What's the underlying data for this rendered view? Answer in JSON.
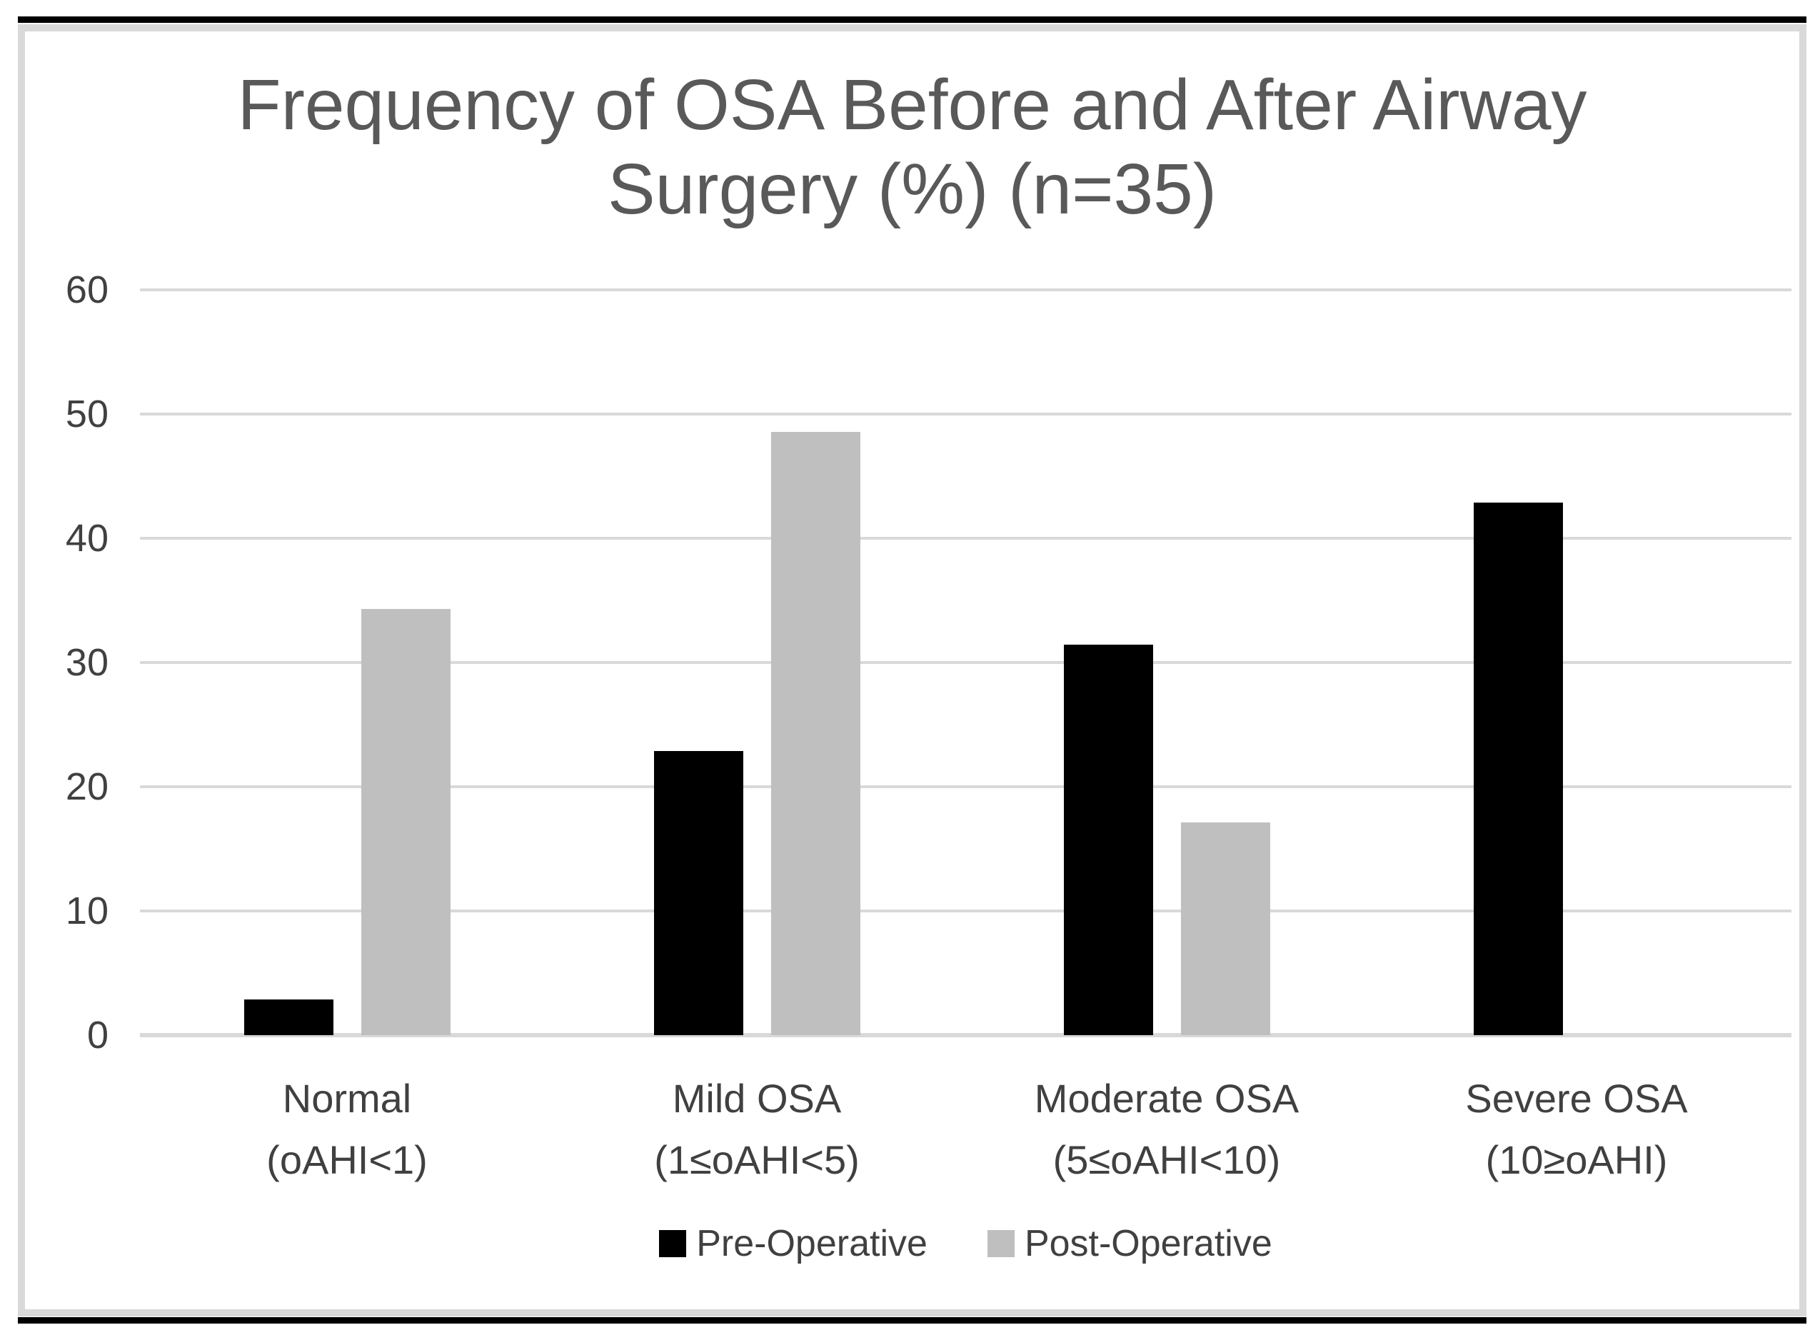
{
  "figure": {
    "title_line1": "Frequency of OSA Before and After Airway",
    "title_line2": "Surgery (%) (n=35)"
  },
  "chart_data": {
    "type": "bar",
    "title": "Frequency of OSA Before and After Airway Surgery (%) (n=35)",
    "sample_size_note": "n=35",
    "categories": [
      {
        "label": "Normal",
        "sublabel": "(oAHI<1)"
      },
      {
        "label": "Mild OSA",
        "sublabel": "(1≤oAHI<5)"
      },
      {
        "label": "Moderate OSA",
        "sublabel": "(5≤oAHI<10)"
      },
      {
        "label": "Severe OSA",
        "sublabel": "(10≥oAHI)"
      }
    ],
    "series": [
      {
        "name": "Pre-Operative",
        "color": "#000000",
        "values": [
          2.86,
          22.86,
          31.43,
          42.86
        ]
      },
      {
        "name": "Post-Operative",
        "color": "#bfbfbf",
        "values": [
          34.29,
          48.57,
          17.14,
          0
        ]
      }
    ],
    "ylim": [
      0,
      60
    ],
    "yticks": [
      0,
      10,
      20,
      30,
      40,
      50,
      60
    ],
    "grid": true,
    "legend_position": "bottom",
    "colors": {
      "gridline": "#d9d9d9",
      "axis_text": "#404040",
      "title_text": "#595959",
      "frame_border": "#d9d9d9",
      "page_rule": "#000000",
      "background": "#ffffff"
    }
  }
}
